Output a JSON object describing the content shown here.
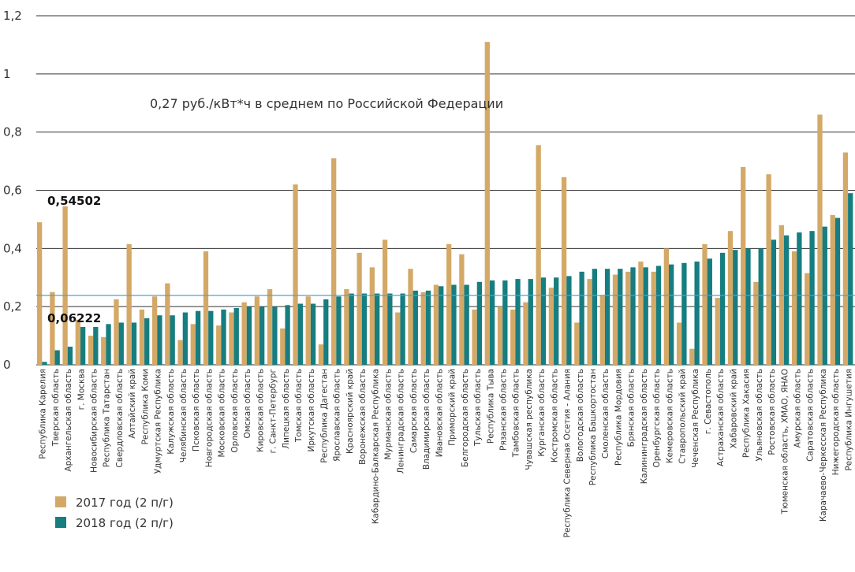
{
  "chart_data": {
    "type": "bar",
    "ylim": [
      0,
      1.2
    ],
    "y_ticks": [
      "0",
      "0,2",
      "0,4",
      "0,6",
      "0,8",
      "1",
      "1,2"
    ],
    "y_tick_values": [
      0,
      0.2,
      0.4,
      0.6,
      0.8,
      1.0,
      1.2
    ],
    "grid": true,
    "legend_position": "bottom-left",
    "reference_line": {
      "value": 0.27,
      "color": "#4aa3d8",
      "label": "0,27 руб./кВт*ч в среднем по Российской Федерации"
    },
    "annotations": [
      "0,54502",
      "0,06222"
    ],
    "categories": [
      "Республика Карелия",
      "Тверская область",
      "Архангельская область",
      "г. Москва",
      "Новосибирская область",
      "Республика Татарстан",
      "Свердловская область",
      "Алтайский край",
      "Республика Коми",
      "Удмуртская Республика",
      "Калужская область",
      "Челябинская область",
      "Псковская область",
      "Новгородская область",
      "Московская область",
      "Орловская область",
      "Омская область",
      "Кировская область",
      "г. Санкт-Петербург",
      "Липецкая область",
      "Томская область",
      "Иркутская область",
      "Республика Дагестан",
      "Ярославская область",
      "Красноярский край",
      "Воронежская область",
      "Кабардино-Балкарская Республика",
      "Мурманская область",
      "Ленинградская область",
      "Самарская область",
      "Владимирская область",
      "Ивановская область",
      "Приморский край",
      "Белгородская область",
      "Тульская область",
      "Республика Тыва",
      "Рязанская область",
      "Тамбовская область",
      "Чувашская республика",
      "Курганская область",
      "Костромская область",
      "Республика Северная Осетия - Алания",
      "Вологодская область",
      "Республика Башкортостан",
      "Смоленская область",
      "Республика Мордовия",
      "Брянская область",
      "Калининградская область",
      "Оренбургская область",
      "Кемеровская область",
      "Ставропольский край",
      "Чеченская Республика",
      "г. Севастополь",
      "Астраханская область",
      "Хабаровский край",
      "Республика Хакасия",
      "Ульяновская область",
      "Ростовская область",
      "Тюменская область, ХМАО, ЯНАО",
      "Амурская область",
      "Саратовская область",
      "Карачаево-Черкесская Республика",
      "Нижегородская область",
      "Республика Ингушетия"
    ],
    "series": [
      {
        "name": "2017 год (2 п/г)",
        "color": "#d4a967",
        "values": [
          0.49,
          0.25,
          0.545,
          0.155,
          0.1,
          0.095,
          0.225,
          0.415,
          0.19,
          0.235,
          0.28,
          0.085,
          0.14,
          0.39,
          0.135,
          0.18,
          0.215,
          0.235,
          0.26,
          0.125,
          0.62,
          0.235,
          0.07,
          0.71,
          0.26,
          0.385,
          0.335,
          0.43,
          0.18,
          0.33,
          0.25,
          0.275,
          0.415,
          0.38,
          0.19,
          1.11,
          0.2,
          0.19,
          0.215,
          0.755,
          0.265,
          0.645,
          0.145,
          0.295,
          0.24,
          0.31,
          0.32,
          0.355,
          0.32,
          0.4,
          0.145,
          0.055,
          0.415,
          0.23,
          0.46,
          0.68,
          0.285,
          0.655,
          0.48,
          0.39,
          0.315,
          0.86,
          0.515,
          0.73
        ]
      },
      {
        "name": "2018 год (2 п/г)",
        "color": "#167d80",
        "values": [
          0.01,
          0.05,
          0.06222,
          0.13,
          0.13,
          0.14,
          0.145,
          0.145,
          0.16,
          0.17,
          0.17,
          0.18,
          0.185,
          0.185,
          0.19,
          0.195,
          0.2,
          0.2,
          0.2,
          0.205,
          0.21,
          0.21,
          0.225,
          0.235,
          0.245,
          0.245,
          0.245,
          0.245,
          0.245,
          0.255,
          0.255,
          0.27,
          0.275,
          0.275,
          0.285,
          0.29,
          0.29,
          0.295,
          0.295,
          0.3,
          0.3,
          0.305,
          0.32,
          0.33,
          0.33,
          0.33,
          0.335,
          0.335,
          0.34,
          0.345,
          0.35,
          0.355,
          0.365,
          0.385,
          0.395,
          0.4,
          0.4,
          0.43,
          0.445,
          0.455,
          0.46,
          0.475,
          0.505,
          0.59
        ]
      }
    ]
  }
}
